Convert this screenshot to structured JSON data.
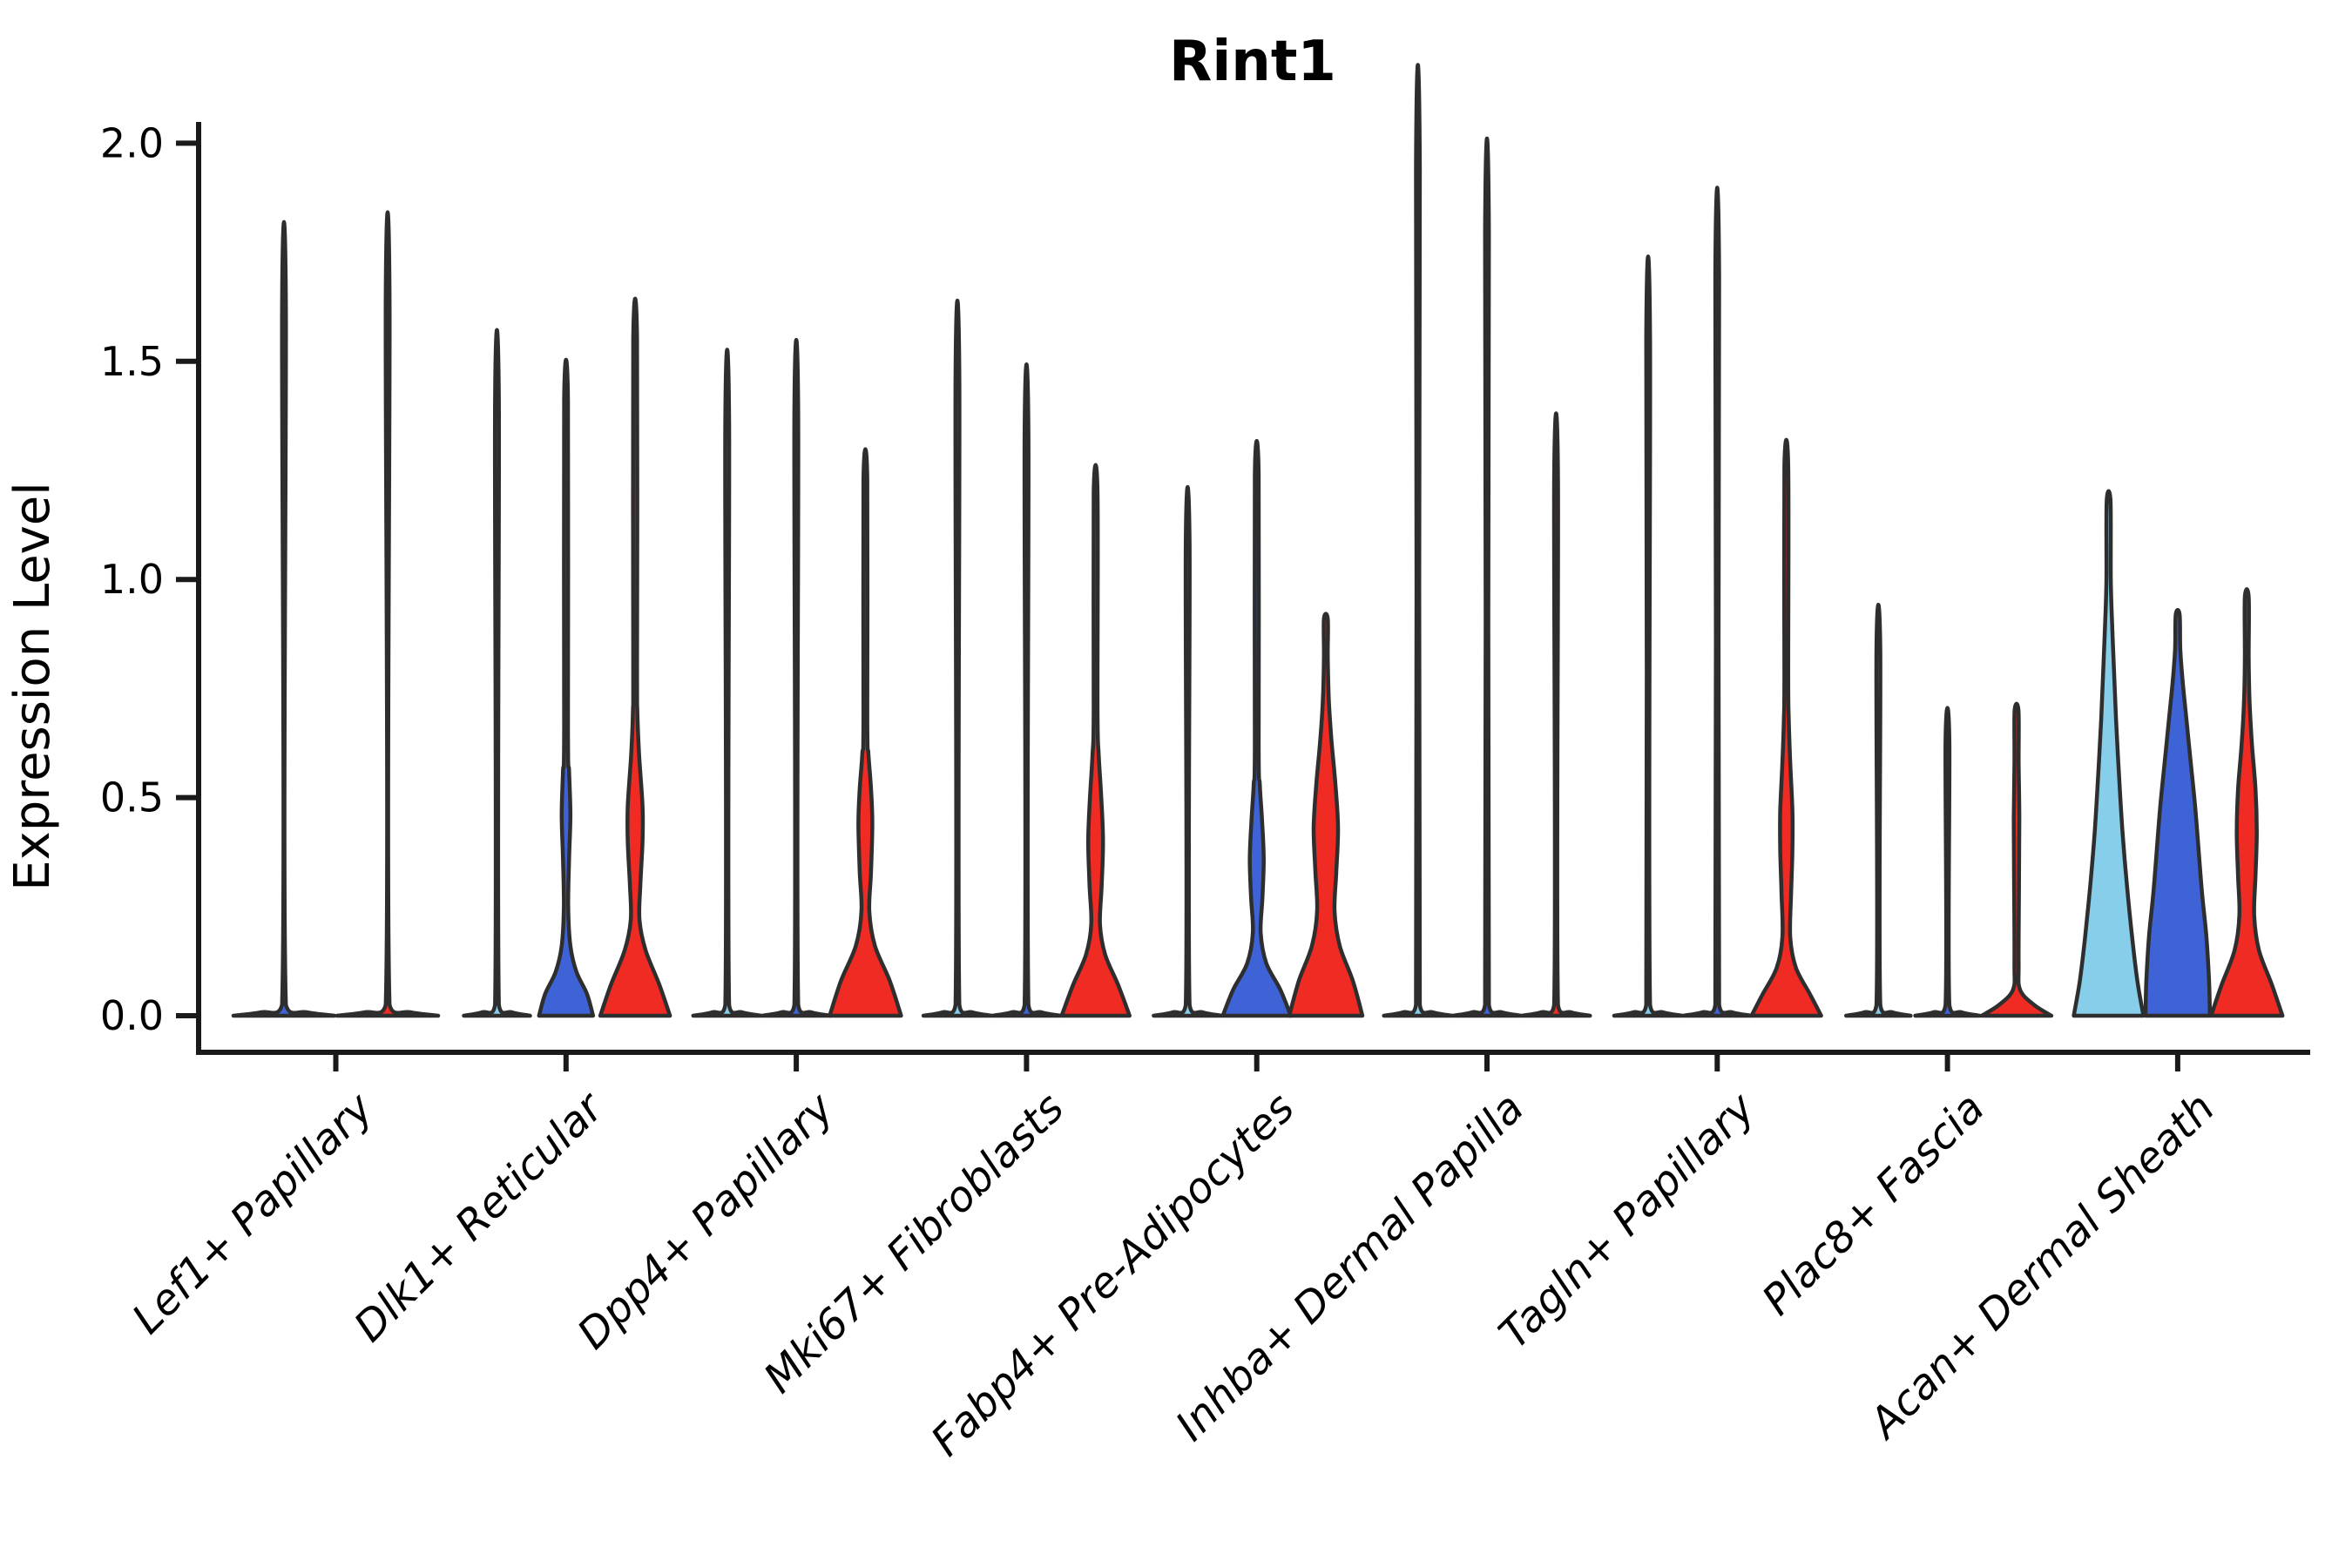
{
  "title": "Rint1",
  "axes": {
    "y_label": "Expression Level",
    "y_tick_labels": [
      "0.0",
      "0.5",
      "1.0",
      "1.5",
      "2.0"
    ],
    "x_categories": [
      "Lef1+ Papillary",
      "Dlk1+ Reticular",
      "Dpp4+ Papillary",
      "Mki67+ Fibroblasts",
      "Fabp4+ Pre-Adipocytes",
      "Inhba+ Dermal Papilla",
      "Tagln+ Papillary",
      "Plac8+ Fascia",
      "Acan+ Dermal Sheath"
    ]
  },
  "colors": {
    "skyblue": "#87CEEB",
    "blue": "#3E63D6",
    "red": "#EF2B23",
    "outline": "#2E2E2E",
    "axis": "#1a1a1a",
    "text": "#000000"
  },
  "chart_data": {
    "type": "violin",
    "title": "Rint1",
    "ylabel": "Expression Level",
    "ylim": [
      -0.09,
      2.03
    ],
    "y_ticks": [
      0,
      0.5,
      1.0,
      1.5,
      2.0
    ],
    "grid": false,
    "legend": false,
    "series_colors": [
      "skyblue",
      "blue",
      "red"
    ],
    "categories": [
      "Lef1+ Papillary",
      "Dlk1+ Reticular",
      "Dpp4+ Papillary",
      "Mki67+ Fibroblasts",
      "Fabp4+ Pre-Adipocytes",
      "Inhba+ Dermal Papilla",
      "Tagln+ Papillary",
      "Plac8+ Fascia",
      "Acan+ Dermal Sheath"
    ],
    "groups": [
      {
        "category": "Lef1+ Papillary",
        "violins": [
          {
            "color": "blue",
            "max": 1.62,
            "profile": [
              [
                0,
                58
              ],
              [
                0.008,
                26
              ],
              [
                0.025,
                2.2
              ],
              [
                1.62,
                2.2
              ]
            ]
          },
          {
            "color": "red",
            "max": 1.64,
            "profile": [
              [
                0,
                58
              ],
              [
                0.008,
                26
              ],
              [
                0.025,
                2.2
              ],
              [
                1.64,
                2.2
              ]
            ]
          }
        ]
      },
      {
        "category": "Dlk1+ Reticular",
        "violins": [
          {
            "color": "skyblue",
            "max": 1.4,
            "profile": [
              [
                0,
                38
              ],
              [
                0.008,
                17
              ],
              [
                0.025,
                2.2
              ],
              [
                1.4,
                2.2
              ]
            ]
          },
          {
            "color": "blue",
            "max": 1.41,
            "profile": [
              [
                0,
                31
              ],
              [
                0.05,
                24
              ],
              [
                0.1,
                12
              ],
              [
                0.16,
                5
              ],
              [
                0.25,
                2.5
              ],
              [
                0.36,
                3.5
              ],
              [
                0.46,
                5
              ],
              [
                0.56,
                3.5
              ],
              [
                0.66,
                2.2
              ],
              [
                1.41,
                2.2
              ]
            ]
          },
          {
            "color": "red",
            "max": 1.55,
            "profile": [
              [
                0,
                40
              ],
              [
                0.07,
                28
              ],
              [
                0.15,
                12
              ],
              [
                0.22,
                5
              ],
              [
                0.3,
                6
              ],
              [
                0.4,
                8.5
              ],
              [
                0.48,
                8.5
              ],
              [
                0.6,
                4.5
              ],
              [
                0.7,
                2.5
              ],
              [
                0.8,
                2.2
              ],
              [
                1.55,
                2.2
              ]
            ]
          }
        ]
      },
      {
        "category": "Dpp4+ Papillary",
        "violins": [
          {
            "color": "skyblue",
            "max": 1.36,
            "profile": [
              [
                0,
                39
              ],
              [
                0.008,
                17
              ],
              [
                0.025,
                2.2
              ],
              [
                1.36,
                2.2
              ]
            ]
          },
          {
            "color": "blue",
            "max": 1.38,
            "profile": [
              [
                0,
                39
              ],
              [
                0.008,
                17
              ],
              [
                0.025,
                2.2
              ],
              [
                1.38,
                2.2
              ]
            ]
          },
          {
            "color": "red",
            "max": 1.23,
            "profile": [
              [
                0,
                41
              ],
              [
                0.08,
                28
              ],
              [
                0.16,
                11
              ],
              [
                0.24,
                4.5
              ],
              [
                0.33,
                6.5
              ],
              [
                0.44,
                8
              ],
              [
                0.52,
                6.5
              ],
              [
                0.6,
                3.5
              ],
              [
                0.68,
                2.2
              ],
              [
                1.23,
                2.2
              ]
            ]
          }
        ]
      },
      {
        "category": "Mki67+ Fibroblasts",
        "violins": [
          {
            "color": "skyblue",
            "max": 1.46,
            "profile": [
              [
                0,
                39
              ],
              [
                0.008,
                17
              ],
              [
                0.025,
                2.2
              ],
              [
                1.46,
                2.2
              ]
            ]
          },
          {
            "color": "blue",
            "max": 1.33,
            "profile": [
              [
                0,
                39
              ],
              [
                0.008,
                17
              ],
              [
                0.025,
                2.2
              ],
              [
                1.33,
                2.2
              ]
            ]
          },
          {
            "color": "red",
            "max": 1.2,
            "profile": [
              [
                0,
                39
              ],
              [
                0.07,
                26
              ],
              [
                0.14,
                11
              ],
              [
                0.21,
                5
              ],
              [
                0.3,
                7
              ],
              [
                0.4,
                8.5
              ],
              [
                0.5,
                6.5
              ],
              [
                0.6,
                3.5
              ],
              [
                0.7,
                2.2
              ],
              [
                1.2,
                2.2
              ]
            ]
          }
        ]
      },
      {
        "category": "Fabp4+ Pre-Adipocytes",
        "violins": [
          {
            "color": "skyblue",
            "max": 1.08,
            "profile": [
              [
                0,
                39
              ],
              [
                0.008,
                17
              ],
              [
                0.025,
                2.2
              ],
              [
                1.08,
                2.2
              ]
            ]
          },
          {
            "color": "blue",
            "max": 1.24,
            "profile": [
              [
                0,
                39
              ],
              [
                0.06,
                27
              ],
              [
                0.12,
                11
              ],
              [
                0.19,
                4.5
              ],
              [
                0.27,
                6.5
              ],
              [
                0.36,
                8
              ],
              [
                0.45,
                6
              ],
              [
                0.53,
                3.5
              ],
              [
                0.62,
                2.2
              ],
              [
                1.24,
                2.2
              ]
            ]
          },
          {
            "color": "red",
            "max": 0.91,
            "profile": [
              [
                0,
                42
              ],
              [
                0.08,
                31
              ],
              [
                0.16,
                16
              ],
              [
                0.24,
                10
              ],
              [
                0.33,
                12
              ],
              [
                0.43,
                14
              ],
              [
                0.53,
                11
              ],
              [
                0.63,
                6.5
              ],
              [
                0.72,
                3.5
              ],
              [
                0.82,
                2.2
              ],
              [
                0.91,
                2.2
              ]
            ]
          }
        ]
      },
      {
        "category": "Inhba+ Dermal Papilla",
        "violins": [
          {
            "color": "skyblue",
            "max": 1.94,
            "profile": [
              [
                0,
                39
              ],
              [
                0.008,
                17
              ],
              [
                0.025,
                2.2
              ],
              [
                1.94,
                2.2
              ]
            ]
          },
          {
            "color": "blue",
            "max": 1.79,
            "profile": [
              [
                0,
                39
              ],
              [
                0.008,
                17
              ],
              [
                0.025,
                2.2
              ],
              [
                1.79,
                2.2
              ]
            ]
          },
          {
            "color": "red",
            "max": 1.23,
            "profile": [
              [
                0,
                39
              ],
              [
                0.008,
                17
              ],
              [
                0.025,
                2.2
              ],
              [
                1.23,
                2.2
              ]
            ]
          }
        ]
      },
      {
        "category": "Tagln+ Papillary",
        "violins": [
          {
            "color": "skyblue",
            "max": 1.55,
            "profile": [
              [
                0,
                39
              ],
              [
                0.008,
                17
              ],
              [
                0.025,
                2.2
              ],
              [
                1.55,
                2.2
              ]
            ]
          },
          {
            "color": "blue",
            "max": 1.69,
            "profile": [
              [
                0,
                39
              ],
              [
                0.008,
                17
              ],
              [
                0.025,
                2.2
              ],
              [
                1.69,
                2.2
              ]
            ]
          },
          {
            "color": "red",
            "max": 1.26,
            "profile": [
              [
                0,
                40
              ],
              [
                0.05,
                27
              ],
              [
                0.11,
                11
              ],
              [
                0.18,
                4.5
              ],
              [
                0.28,
                5.5
              ],
              [
                0.38,
                7
              ],
              [
                0.47,
                7
              ],
              [
                0.58,
                4.5
              ],
              [
                0.68,
                2.8
              ],
              [
                0.78,
                2.2
              ],
              [
                1.26,
                2.2
              ]
            ]
          }
        ]
      },
      {
        "category": "Plac8+ Fascia",
        "violins": [
          {
            "color": "skyblue",
            "max": 0.84,
            "profile": [
              [
                0,
                37
              ],
              [
                0.008,
                16
              ],
              [
                0.025,
                2.2
              ],
              [
                0.84,
                2.2
              ]
            ]
          },
          {
            "color": "blue",
            "max": 0.63,
            "profile": [
              [
                0,
                37
              ],
              [
                0.008,
                16
              ],
              [
                0.025,
                2.2
              ],
              [
                0.63,
                2.2
              ]
            ]
          },
          {
            "color": "red",
            "max": 0.7,
            "profile": [
              [
                0,
                40
              ],
              [
                0.025,
                20
              ],
              [
                0.06,
                4
              ],
              [
                0.12,
                2.4
              ],
              [
                0.3,
                2.8
              ],
              [
                0.45,
                3.2
              ],
              [
                0.58,
                2.4
              ],
              [
                0.7,
                2.2
              ]
            ]
          }
        ]
      },
      {
        "category": "Acan+ Dermal Sheath",
        "violins": [
          {
            "color": "skyblue",
            "max": 1.18,
            "profile": [
              [
                0,
                40
              ],
              [
                0.08,
                33
              ],
              [
                0.18,
                27
              ],
              [
                0.3,
                21
              ],
              [
                0.42,
                16
              ],
              [
                0.55,
                12
              ],
              [
                0.68,
                8.5
              ],
              [
                0.8,
                6
              ],
              [
                0.9,
                4
              ],
              [
                1.0,
                2.5
              ],
              [
                1.18,
                2.2
              ]
            ]
          },
          {
            "color": "blue",
            "max": 0.92,
            "profile": [
              [
                0,
                37
              ],
              [
                0.08,
                36
              ],
              [
                0.18,
                33
              ],
              [
                0.28,
                28
              ],
              [
                0.38,
                24
              ],
              [
                0.48,
                20
              ],
              [
                0.58,
                15
              ],
              [
                0.68,
                10
              ],
              [
                0.76,
                6
              ],
              [
                0.84,
                3
              ],
              [
                0.92,
                2.2
              ]
            ]
          },
          {
            "color": "red",
            "max": 0.96,
            "profile": [
              [
                0,
                41
              ],
              [
                0.07,
                29
              ],
              [
                0.15,
                14
              ],
              [
                0.23,
                8.5
              ],
              [
                0.32,
                10
              ],
              [
                0.42,
                11.5
              ],
              [
                0.52,
                10
              ],
              [
                0.62,
                6
              ],
              [
                0.72,
                3.2
              ],
              [
                0.82,
                2.2
              ],
              [
                0.96,
                2.2
              ]
            ]
          }
        ]
      }
    ]
  }
}
